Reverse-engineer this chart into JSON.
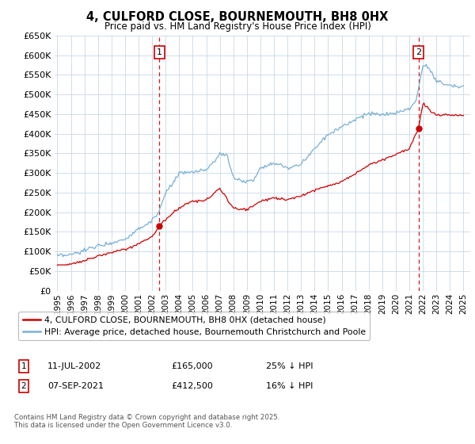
{
  "title": "4, CULFORD CLOSE, BOURNEMOUTH, BH8 0HX",
  "subtitle": "Price paid vs. HM Land Registry's House Price Index (HPI)",
  "red_label": "4, CULFORD CLOSE, BOURNEMOUTH, BH8 0HX (detached house)",
  "blue_label": "HPI: Average price, detached house, Bournemouth Christchurch and Poole",
  "footer": "Contains HM Land Registry data © Crown copyright and database right 2025.\nThis data is licensed under the Open Government Licence v3.0.",
  "ylim": [
    0,
    650000
  ],
  "background_color": "#ffffff",
  "grid_color": "#c8d8e8",
  "red_color": "#cc0000",
  "blue_color": "#7ab0d4",
  "marker1_x": 2002.54,
  "marker2_x": 2021.68,
  "marker1_price": 165000,
  "marker2_price": 412500,
  "ann1_date": "11-JUL-2002",
  "ann1_price": "£165,000",
  "ann1_pct": "25% ↓ HPI",
  "ann2_date": "07-SEP-2021",
  "ann2_price": "£412,500",
  "ann2_pct": "16% ↓ HPI",
  "hpi_anchors_x": [
    1995,
    1996,
    1997,
    1998,
    1999,
    2000,
    2001,
    2002,
    2002.5,
    2003,
    2004,
    2005,
    2006,
    2007,
    2007.5,
    2008,
    2008.5,
    2009,
    2009.5,
    2010,
    2011,
    2012,
    2013,
    2014,
    2015,
    2016,
    2017,
    2018,
    2019,
    2019.5,
    2020,
    2020.5,
    2021,
    2021.5,
    2022,
    2022.3,
    2022.7,
    2023,
    2023.5,
    2024,
    2025
  ],
  "hpi_anchors_y": [
    88000,
    91000,
    103000,
    115000,
    122000,
    132000,
    158000,
    178000,
    200000,
    248000,
    298000,
    302000,
    308000,
    346000,
    348000,
    290000,
    280000,
    278000,
    282000,
    315000,
    325000,
    312000,
    322000,
    363000,
    398000,
    418000,
    437000,
    452000,
    447000,
    450000,
    452000,
    460000,
    463000,
    485000,
    575000,
    570000,
    555000,
    535000,
    528000,
    523000,
    520000
  ],
  "price_anchors_x": [
    1995,
    1996,
    1997,
    1998,
    1999,
    2000,
    2001,
    2002,
    2002.54,
    2003,
    2004,
    2005,
    2006,
    2007,
    2008,
    2009,
    2010,
    2011,
    2012,
    2013,
    2014,
    2015,
    2016,
    2017,
    2018,
    2019,
    2020,
    2021,
    2021.68,
    2022,
    2022.5,
    2023,
    2024,
    2025
  ],
  "price_anchors_y": [
    65000,
    68000,
    78000,
    88000,
    98000,
    105000,
    120000,
    138000,
    165000,
    182000,
    212000,
    228000,
    230000,
    262000,
    210000,
    207000,
    228000,
    237000,
    232000,
    242000,
    257000,
    268000,
    278000,
    298000,
    320000,
    333000,
    348000,
    363000,
    412500,
    478000,
    460000,
    448000,
    447000,
    447000
  ]
}
